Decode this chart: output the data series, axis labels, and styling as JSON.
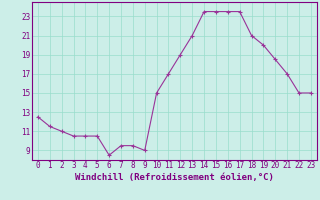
{
  "x": [
    0,
    1,
    2,
    3,
    4,
    5,
    6,
    7,
    8,
    9,
    10,
    11,
    12,
    13,
    14,
    15,
    16,
    17,
    18,
    19,
    20,
    21,
    22,
    23
  ],
  "y": [
    12.5,
    11.5,
    11.0,
    10.5,
    10.5,
    10.5,
    8.5,
    9.5,
    9.5,
    9.0,
    15.0,
    17.0,
    19.0,
    21.0,
    23.5,
    23.5,
    23.5,
    23.5,
    21.0,
    20.0,
    18.5,
    17.0,
    15.0,
    15.0
  ],
  "line_color": "#993399",
  "marker": "+",
  "markersize": 3,
  "linewidth": 0.8,
  "xlabel": "Windchill (Refroidissement éolien,°C)",
  "xlabel_fontsize": 6.5,
  "ylabel_ticks": [
    9,
    11,
    13,
    15,
    17,
    19,
    21,
    23
  ],
  "xtick_labels": [
    "0",
    "1",
    "2",
    "3",
    "4",
    "5",
    "6",
    "7",
    "8",
    "9",
    "10",
    "11",
    "12",
    "13",
    "14",
    "15",
    "16",
    "17",
    "18",
    "19",
    "20",
    "21",
    "22",
    "23"
  ],
  "ylim": [
    8.0,
    24.5
  ],
  "xlim": [
    -0.5,
    23.5
  ],
  "bg_color": "#cceee8",
  "grid_color": "#99ddcc",
  "tick_color": "#800080",
  "tick_fontsize": 5.5,
  "spine_color": "#800080"
}
